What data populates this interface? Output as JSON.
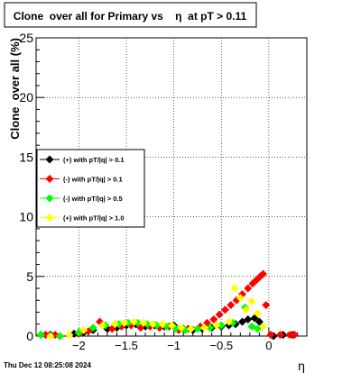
{
  "chart_data": {
    "type": "scatter",
    "title": "Clone  over all for Primary vs    η  at pT > 0.11",
    "xlabel": "η",
    "ylabel": "Clone  over all (%)",
    "xlim": [
      -2.45,
      0.4
    ],
    "ylim": [
      0,
      25
    ],
    "x_ticks": [
      -2,
      -1.5,
      -1,
      -0.5,
      0
    ],
    "x_tick_labels": [
      "−2",
      "−1.5",
      "−1",
      "−0.5",
      "0"
    ],
    "y_ticks": [
      0,
      5,
      10,
      15,
      20,
      25
    ],
    "y_tick_labels": [
      "0",
      "5",
      "10",
      "15",
      "20",
      "25"
    ],
    "grid": true,
    "legend_position": "middle-left",
    "series": [
      {
        "name": "(+) with pT/|q| > 0.1",
        "color": "#000000",
        "points": [
          [
            -2.4,
            0.1
          ],
          [
            -2.3,
            0.1
          ],
          [
            -2.2,
            0.0
          ],
          [
            -2.05,
            0.2
          ],
          [
            -1.95,
            0.3
          ],
          [
            -1.85,
            0.5
          ],
          [
            -1.7,
            0.6
          ],
          [
            -1.6,
            0.7
          ],
          [
            -1.5,
            0.9
          ],
          [
            -1.4,
            1.0
          ],
          [
            -1.3,
            0.8
          ],
          [
            -1.2,
            0.9
          ],
          [
            -1.1,
            0.8
          ],
          [
            -1.0,
            0.9
          ],
          [
            -0.9,
            0.6
          ],
          [
            -0.8,
            0.5
          ],
          [
            -0.7,
            0.6
          ],
          [
            -0.6,
            0.7
          ],
          [
            -0.5,
            0.8
          ],
          [
            -0.42,
            0.9
          ],
          [
            -0.35,
            1.0
          ],
          [
            -0.28,
            1.2
          ],
          [
            -0.22,
            1.4
          ],
          [
            -0.15,
            1.5
          ],
          [
            -0.1,
            1.2
          ],
          [
            0.05,
            0.0
          ],
          [
            0.15,
            0.1
          ],
          [
            0.25,
            0.1
          ]
        ]
      },
      {
        "name": "(-) with pT/|q| > 0.1",
        "color": "#ff0000",
        "points": [
          [
            -2.35,
            0.1
          ],
          [
            -2.25,
            0.1
          ],
          [
            -2.0,
            0.2
          ],
          [
            -1.9,
            0.4
          ],
          [
            -1.78,
            1.2
          ],
          [
            -1.65,
            0.6
          ],
          [
            -1.55,
            0.8
          ],
          [
            -1.45,
            0.9
          ],
          [
            -1.35,
            0.7
          ],
          [
            -1.25,
            0.8
          ],
          [
            -1.15,
            0.7
          ],
          [
            -1.05,
            0.8
          ],
          [
            -0.95,
            0.5
          ],
          [
            -0.85,
            0.6
          ],
          [
            -0.72,
            0.8
          ],
          [
            -0.65,
            1.1
          ],
          [
            -0.58,
            1.4
          ],
          [
            -0.52,
            1.8
          ],
          [
            -0.46,
            2.2
          ],
          [
            -0.4,
            2.6
          ],
          [
            -0.34,
            3.0
          ],
          [
            -0.28,
            3.5
          ],
          [
            -0.22,
            4.0
          ],
          [
            -0.17,
            4.4
          ],
          [
            -0.13,
            4.7
          ],
          [
            -0.09,
            5.0
          ],
          [
            -0.06,
            5.2
          ],
          [
            -0.03,
            2.6
          ],
          [
            0.02,
            0.1
          ],
          [
            0.12,
            0.1
          ],
          [
            0.22,
            0.1
          ],
          [
            0.27,
            0.1
          ]
        ]
      },
      {
        "name": "(-) with pT/|q| > 0.5",
        "color": "#00ff00",
        "points": [
          [
            -2.4,
            0.1
          ],
          [
            -2.2,
            0.0
          ],
          [
            -2.0,
            0.3
          ],
          [
            -1.85,
            0.7
          ],
          [
            -1.72,
            0.9
          ],
          [
            -1.58,
            1.0
          ],
          [
            -1.48,
            1.1
          ],
          [
            -1.38,
            1.1
          ],
          [
            -1.28,
            1.0
          ],
          [
            -1.18,
            0.9
          ],
          [
            -1.08,
            0.8
          ],
          [
            -0.98,
            0.6
          ],
          [
            -0.88,
            0.5
          ],
          [
            -0.75,
            0.6
          ],
          [
            -0.62,
            0.7
          ],
          [
            -0.5,
            0.9
          ],
          [
            -0.38,
            1.1
          ],
          [
            -0.25,
            2.4
          ],
          [
            -0.18,
            0.8
          ],
          [
            -0.12,
            0.6
          ]
        ]
      },
      {
        "name": "(+) with pT/|q| > 1.0",
        "color": "#ffff00",
        "points": [
          [
            -2.3,
            0.0
          ],
          [
            -2.1,
            0.1
          ],
          [
            -1.95,
            0.5
          ],
          [
            -1.75,
            0.9
          ],
          [
            -1.62,
            1.0
          ],
          [
            -1.52,
            1.1
          ],
          [
            -1.42,
            1.2
          ],
          [
            -1.32,
            1.1
          ],
          [
            -1.22,
            1.0
          ],
          [
            -1.12,
            1.0
          ],
          [
            -1.02,
            0.9
          ],
          [
            -0.92,
            0.7
          ],
          [
            -0.82,
            0.6
          ],
          [
            -0.68,
            0.7
          ],
          [
            -0.55,
            0.9
          ],
          [
            -0.42,
            1.2
          ],
          [
            -0.36,
            4.0
          ],
          [
            -0.3,
            3.2
          ],
          [
            -0.24,
            2.2
          ],
          [
            -0.18,
            2.9
          ],
          [
            -0.12,
            1.9
          ],
          [
            -0.06,
            0.8
          ]
        ]
      }
    ]
  },
  "footer": {
    "timestamp": "Thu Dec 12 08:25:08 2024"
  }
}
